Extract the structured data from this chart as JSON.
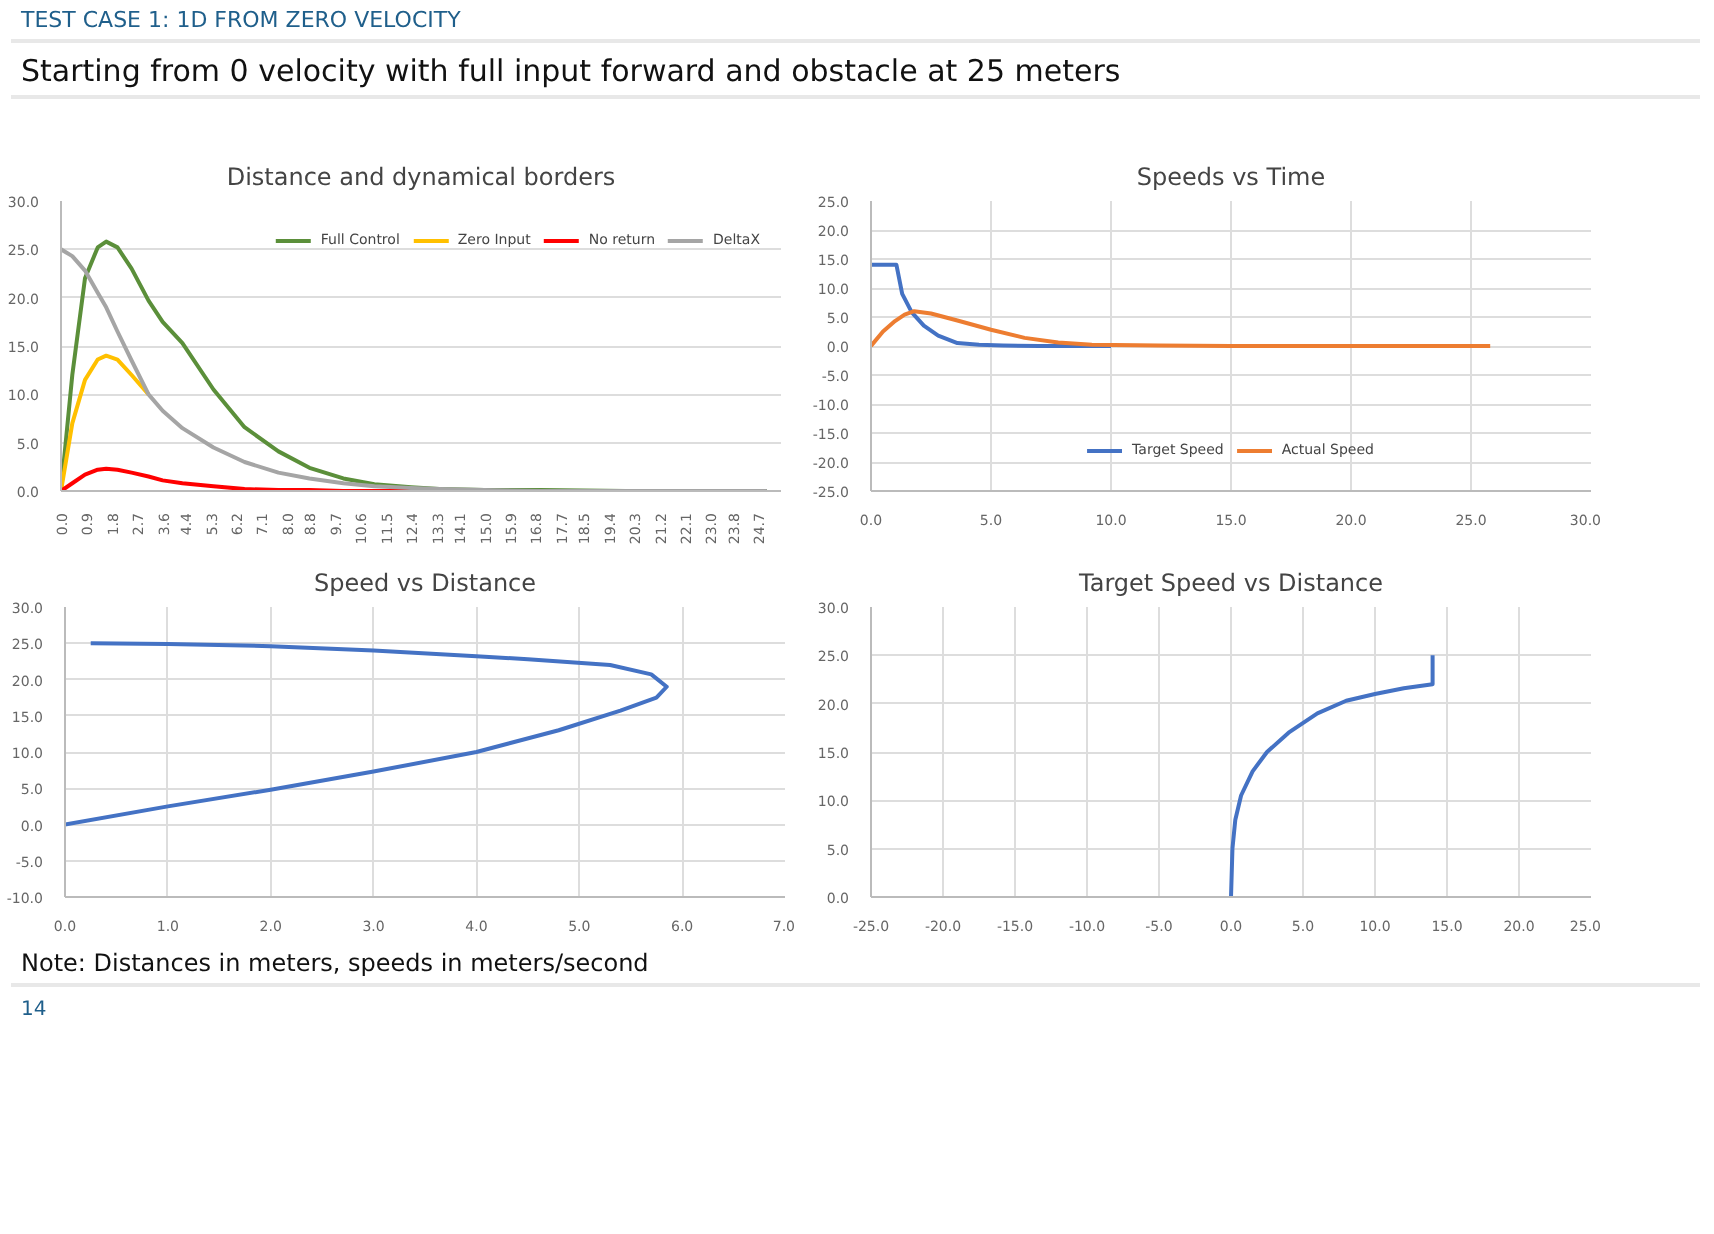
{
  "chart_data": [
    {
      "type": "other",
      "title": "TEST CASE 1: 1D FROM ZERO VELOCITY",
      "subtitle": "Starting from 0 velocity with full input forward and obstacle at 25 meters"
    },
    {
      "type": "line",
      "title": "Distance and dynamical borders",
      "x": [
        0,
        0.4,
        0.85,
        1.3,
        1.6,
        2.0,
        2.5,
        3.1,
        3.6,
        4.3,
        5.4,
        6.5,
        7.7,
        8.8,
        10,
        11.1,
        12.4,
        13.4,
        15,
        17,
        20,
        25
      ],
      "series": [
        {
          "name": "Full Control",
          "color": "#5b8f3a",
          "values": [
            0,
            12,
            22,
            25.2,
            25.8,
            25.2,
            23,
            19.7,
            17.5,
            15.3,
            10.5,
            6.6,
            4.1,
            2.4,
            1.3,
            0.7,
            0.4,
            0.2,
            0.1,
            0.1,
            0,
            0
          ]
        },
        {
          "name": "Zero Input",
          "color": "#ffc000",
          "x": [
            0,
            0.4,
            0.85,
            1.3,
            1.6,
            2.0,
            2.5,
            3.1
          ],
          "values": [
            0,
            7,
            11.5,
            13.6,
            14,
            13.6,
            12,
            10
          ]
        },
        {
          "name": "No return",
          "color": "#ff0000",
          "values": [
            0,
            0.8,
            1.7,
            2.2,
            2.3,
            2.2,
            1.9,
            1.5,
            1.1,
            0.8,
            0.5,
            0.2,
            0.1,
            0.1,
            0,
            0,
            0,
            0,
            null,
            null,
            null,
            null
          ]
        },
        {
          "name": "DeltaX",
          "color": "#a5a5a5",
          "values": [
            25,
            24.3,
            22.8,
            20.5,
            19,
            16.5,
            13.5,
            10,
            8.3,
            6.5,
            4.5,
            3.0,
            1.9,
            1.3,
            0.8,
            0.5,
            0.3,
            0.2,
            0.1,
            0,
            0,
            0
          ]
        }
      ],
      "xlim": [
        0,
        25.5
      ],
      "xticks": [
        {
          "value": 0,
          "label": "0.0"
        },
        0.9,
        1.8,
        2.7,
        3.6,
        4.4,
        5.3,
        6.2,
        7.1,
        {
          "value": 8,
          "label": "8.0"
        },
        8.8,
        9.7,
        10.6,
        11.5,
        12.4,
        13.3,
        14.1,
        {
          "value": 15,
          "label": "15.0"
        },
        15.9,
        16.8,
        17.7,
        18.5,
        19.4,
        20.3,
        21.2,
        22.1,
        {
          "value": 23,
          "label": "23.0"
        },
        23.8,
        24.7
      ],
      "ylim": [
        0,
        30
      ],
      "yticks": [
        {
          "value": 0,
          "label": "0.0"
        },
        {
          "value": 5,
          "label": "5.0"
        },
        {
          "value": 10,
          "label": "10.0"
        },
        {
          "value": 15,
          "label": "15.0"
        },
        {
          "value": 20,
          "label": "20.0"
        },
        {
          "value": 25,
          "label": "25.0"
        },
        {
          "value": 30,
          "label": "30.0"
        }
      ],
      "grid": "y",
      "legend": "top right"
    },
    {
      "type": "line",
      "title": "Speeds vs Time",
      "series": [
        {
          "name": "Target Speed",
          "color": "#4472c4",
          "x": [
            0,
            0.5,
            1.06,
            1.3,
            1.7,
            2.2,
            2.8,
            3.6,
            4.5,
            5.5,
            7,
            10
          ],
          "values": [
            14,
            14,
            14,
            9,
            5.8,
            3.5,
            1.8,
            0.5,
            0.2,
            0.1,
            0,
            0
          ]
        },
        {
          "name": "Actual Speed",
          "color": "#ed7d31",
          "x": [
            0,
            0.5,
            1.0,
            1.4,
            1.8,
            2.5,
            3.6,
            5.0,
            6.4,
            7.8,
            9.2,
            12,
            15,
            20,
            25.8
          ],
          "values": [
            0,
            2.5,
            4.3,
            5.4,
            6,
            5.6,
            4.4,
            2.8,
            1.4,
            0.6,
            0.2,
            0.1,
            0,
            0,
            0
          ]
        }
      ],
      "xlim": [
        0,
        30
      ],
      "xticks": [
        {
          "value": 0,
          "label": "0.0"
        },
        {
          "value": 5,
          "label": "5.0"
        },
        {
          "value": 10,
          "label": "10.0"
        },
        {
          "value": 15,
          "label": "15.0"
        },
        {
          "value": 20,
          "label": "20.0"
        },
        {
          "value": 25,
          "label": "25.0"
        },
        {
          "value": 30,
          "label": "30.0"
        }
      ],
      "ylim": [
        -25,
        25
      ],
      "yticks": [
        {
          "value": -25,
          "label": "-25.0"
        },
        {
          "value": -20,
          "label": "-20.0"
        },
        {
          "value": -15,
          "label": "-15.0"
        },
        {
          "value": -10,
          "label": "-10.0"
        },
        {
          "value": -5,
          "label": "-5.0"
        },
        {
          "value": 0,
          "label": "0.0"
        },
        {
          "value": 5,
          "label": "5.0"
        },
        {
          "value": 10,
          "label": "10.0"
        },
        {
          "value": 15,
          "label": "15.0"
        },
        {
          "value": 20,
          "label": "20.0"
        },
        {
          "value": 25,
          "label": "25.0"
        }
      ],
      "grid": true,
      "legend": "bottom"
    },
    {
      "type": "line",
      "title": "Speed vs Distance",
      "series": [
        {
          "color": "#4472c4",
          "x": [
            0,
            1,
            2,
            3,
            4,
            4.8,
            5.4,
            5.75,
            5.85,
            5.7,
            5.3,
            4.5,
            4,
            3,
            2,
            1,
            0.25
          ],
          "values": [
            0,
            2.5,
            4.8,
            7.3,
            10,
            13,
            15.7,
            17.5,
            19,
            20.7,
            22,
            22.8,
            23.2,
            24,
            24.6,
            24.9,
            25
          ]
        }
      ],
      "xlim": [
        0,
        7
      ],
      "xticks": [
        {
          "value": 0,
          "label": "0.0"
        },
        {
          "value": 1,
          "label": "1.0"
        },
        {
          "value": 2,
          "label": "2.0"
        },
        {
          "value": 3,
          "label": "3.0"
        },
        {
          "value": 4,
          "label": "4.0"
        },
        {
          "value": 5,
          "label": "5.0"
        },
        {
          "value": 6,
          "label": "6.0"
        },
        {
          "value": 7,
          "label": "7.0"
        }
      ],
      "ylim": [
        -10,
        30
      ],
      "yticks": [
        {
          "value": -10,
          "label": "-10.0"
        },
        {
          "value": -5,
          "label": "-5.0"
        },
        {
          "value": 0,
          "label": "0.0"
        },
        {
          "value": 5,
          "label": "5.0"
        },
        {
          "value": 10,
          "label": "10.0"
        },
        {
          "value": 15,
          "label": "15.0"
        },
        {
          "value": 20,
          "label": "20.0"
        },
        {
          "value": 25,
          "label": "25.0"
        },
        {
          "value": 30,
          "label": "30.0"
        }
      ],
      "grid": true
    },
    {
      "type": "line",
      "title": "Target Speed vs Distance",
      "series": [
        {
          "color": "#4472c4",
          "x": [
            0,
            0.1,
            0.3,
            0.7,
            1.5,
            2.5,
            4,
            6,
            8,
            10,
            12,
            14,
            14
          ],
          "values": [
            0,
            5,
            8,
            10.5,
            13,
            15,
            17,
            19,
            20.3,
            21,
            21.6,
            22,
            25
          ]
        }
      ],
      "xlim": [
        -25,
        25
      ],
      "xticks": [
        {
          "value": -25,
          "label": "-25.0"
        },
        {
          "value": -20,
          "label": "-20.0"
        },
        {
          "value": -15,
          "label": "-15.0"
        },
        {
          "value": -10,
          "label": "-10.0"
        },
        {
          "value": -5,
          "label": "-5.0"
        },
        {
          "value": 0,
          "label": "0.0"
        },
        {
          "value": 5,
          "label": "5.0"
        },
        {
          "value": 10,
          "label": "10.0"
        },
        {
          "value": 15,
          "label": "15.0"
        },
        {
          "value": 20,
          "label": "20.0"
        },
        {
          "value": 25,
          "label": "25.0"
        }
      ],
      "ylim": [
        0,
        30
      ],
      "yticks": [
        {
          "value": 0,
          "label": "0.0"
        },
        {
          "value": 5,
          "label": "5.0"
        },
        {
          "value": 10,
          "label": "10.0"
        },
        {
          "value": 15,
          "label": "15.0"
        },
        {
          "value": 20,
          "label": "20.0"
        },
        {
          "value": 25,
          "label": "25.0"
        },
        {
          "value": 30,
          "label": "30.0"
        }
      ],
      "grid": true
    },
    {
      "type": "other",
      "annotations": [
        "Note: Distances in meters, speeds in meters/second",
        "14"
      ]
    }
  ]
}
